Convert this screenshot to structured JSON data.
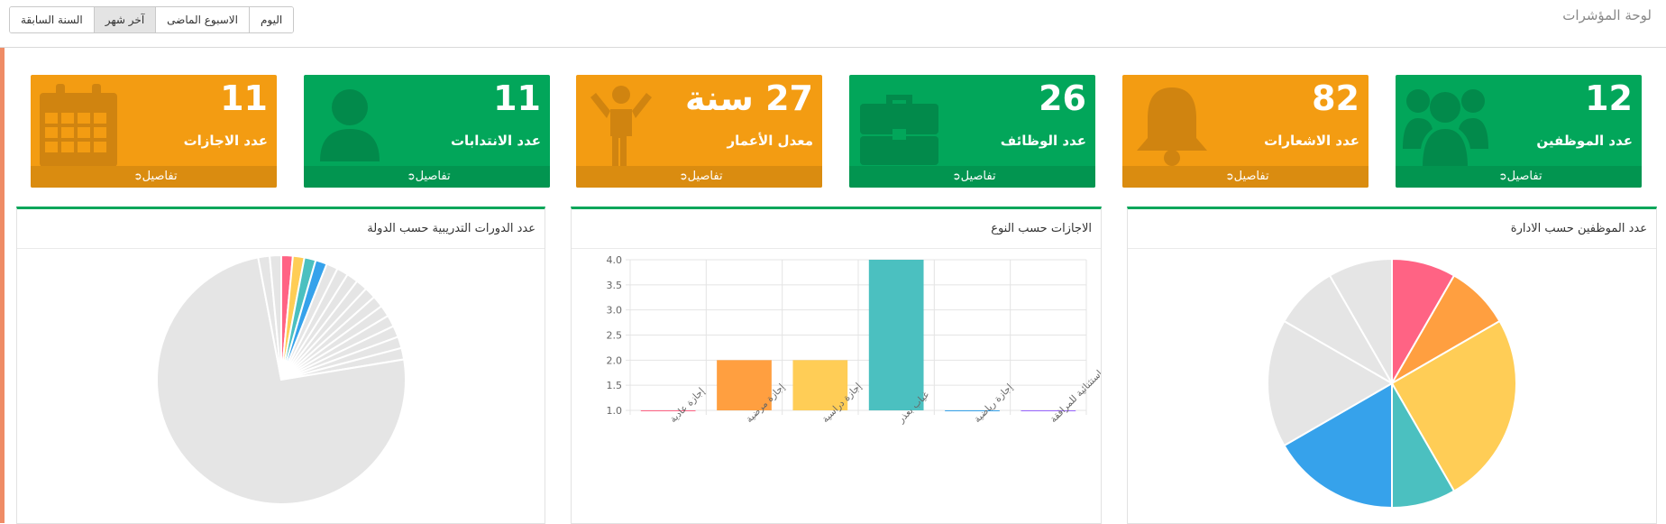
{
  "header": {
    "title": "لوحة المؤشرات",
    "ranges": [
      "اليوم",
      "الاسبوع الماضى",
      "آخر شهر",
      "السنة السابقة"
    ],
    "active_range": "آخر شهر"
  },
  "cards": [
    {
      "value": "12",
      "label": "عدد الموظفين",
      "details": "تفاصيل",
      "color": "#02a65a",
      "icon": "users-icon"
    },
    {
      "value": "82",
      "label": "عدد الاشعارات",
      "details": "تفاصيل",
      "color": "#f39c12",
      "icon": "bell-icon"
    },
    {
      "value": "26",
      "label": "عدد الوظائف",
      "details": "تفاصيل",
      "color": "#02a65a",
      "icon": "briefcase-icon"
    },
    {
      "value": "27 سنة",
      "label": "معدل الأعمار",
      "details": "تفاصيل",
      "color": "#f39c12",
      "icon": "child-icon"
    },
    {
      "value": "11",
      "label": "عدد الانتدابات",
      "details": "تفاصيل",
      "color": "#02a65a",
      "icon": "user-icon"
    },
    {
      "value": "11",
      "label": "عدد الاجازات",
      "details": "تفاصيل",
      "color": "#f39c12",
      "icon": "calendar-icon"
    }
  ],
  "panels": {
    "employees_by_department": "عدد الموظفين حسب الادارة",
    "leaves_by_type": "الاجازات حسب النوع",
    "courses_by_country": "عدد الدورات التدريبية حسب الدولة"
  },
  "chart_data": [
    {
      "type": "pie",
      "title": "عدد الموظفين حسب الادارة",
      "values": [
        1,
        1,
        3,
        1,
        2,
        2,
        1,
        1
      ],
      "colors": [
        "#ff6384",
        "#ff9f40",
        "#ffcd56",
        "#4bc0c0",
        "#36a2eb",
        "#e5e5e5",
        "#e5e5e5",
        "#e5e5e5"
      ]
    },
    {
      "type": "bar",
      "title": "الاجازات حسب النوع",
      "categories": [
        "إجازة عادية",
        "إجازة مرضية",
        "إجازة دراسية",
        "غياب بعذر",
        "إجازة رياضية",
        "إجازة استثنائية للمرافقة"
      ],
      "values": [
        1,
        2,
        2,
        4,
        1,
        1
      ],
      "colors": [
        "#ff6384",
        "#ff9f40",
        "#ffcd56",
        "#4bc0c0",
        "#36a2eb",
        "#9966ff"
      ],
      "ylim": [
        1,
        4
      ],
      "yticks": [
        "1.0",
        "1.5",
        "2.0",
        "2.5",
        "3.0",
        "3.5",
        "4.0"
      ],
      "grid": true
    },
    {
      "type": "pie",
      "title": "عدد الدورات التدريبية حسب الدولة",
      "values": [
        1,
        1,
        1,
        1,
        1,
        1,
        1,
        1,
        1,
        1,
        1,
        1,
        1,
        1,
        1,
        50,
        1,
        1
      ],
      "colors": [
        "#ff6384",
        "#ffcd56",
        "#4bc0c0",
        "#36a2eb",
        "#e5e5e5",
        "#e5e5e5",
        "#e5e5e5",
        "#e5e5e5",
        "#e5e5e5",
        "#e5e5e5",
        "#e5e5e5",
        "#e5e5e5",
        "#e5e5e5",
        "#e5e5e5",
        "#e5e5e5",
        "#e5e5e5",
        "#e5e5e5",
        "#e5e5e5"
      ]
    }
  ]
}
